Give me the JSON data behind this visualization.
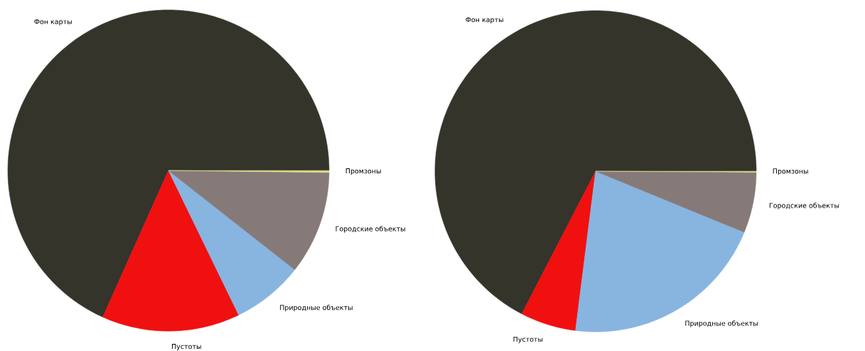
{
  "chart_data": [
    {
      "type": "pie",
      "categories": [
        "Фон карты",
        "Пустоты",
        "Природные объекты",
        "Городские объекты",
        "Промзоны"
      ],
      "values": [
        68.3,
        13.9,
        7.2,
        10.4,
        0.2
      ],
      "colors": [
        "#34342b",
        "#f01010",
        "#88b4e0",
        "#857a78",
        "#d9d68b"
      ]
    },
    {
      "type": "pie",
      "categories": [
        "Фон карты",
        "Пустоты",
        "Природные объекты",
        "Городские объекты",
        "Промзоны"
      ],
      "values": [
        67.4,
        5.6,
        20.8,
        6.1,
        0.1
      ],
      "colors": [
        "#34342b",
        "#f01010",
        "#88b4e0",
        "#857a78",
        "#d9d68b"
      ]
    }
  ]
}
